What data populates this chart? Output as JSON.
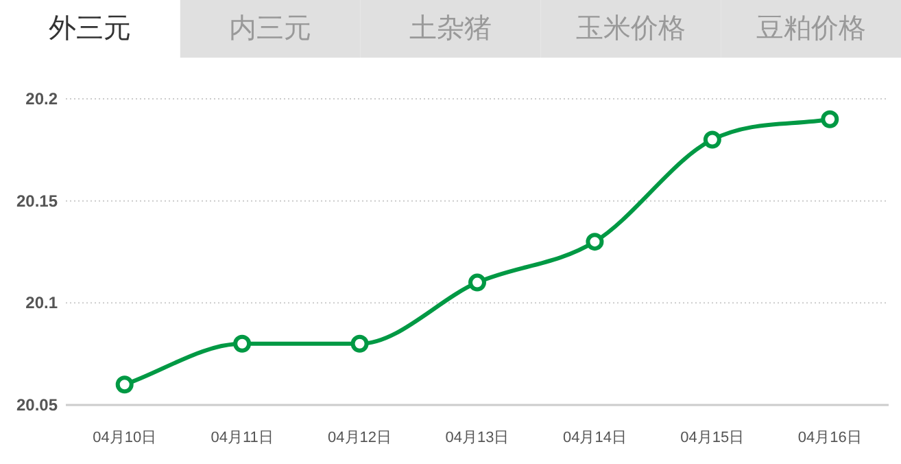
{
  "chart_data": {
    "type": "line",
    "title": "外三元",
    "annotations": [
      "内三元",
      "土杂猪",
      "玉米价格",
      "豆粕价格"
    ],
    "categories": [
      "04月10日",
      "04月11日",
      "04月12日",
      "04月13日",
      "04月14日",
      "04月15日",
      "04月16日"
    ],
    "series": [
      {
        "color": "#009944",
        "values": [
          20.06,
          20.08,
          20.08,
          20.11,
          20.13,
          20.18,
          20.19
        ]
      }
    ],
    "ylim": [
      20.05,
      20.2
    ],
    "yticks": [
      20.05,
      20.1,
      20.15,
      20.2
    ],
    "grid": "y",
    "marker": "circle",
    "line_style": "solid"
  }
}
